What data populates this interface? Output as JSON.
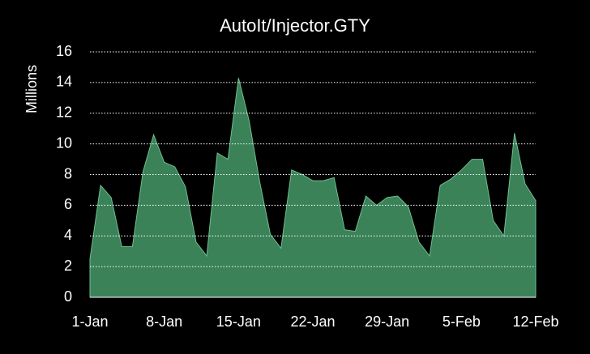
{
  "chart_data": {
    "type": "area",
    "title": "AutoIt/Injector.GTY",
    "y_label": "Millions",
    "categories": [
      "1-Jan",
      null,
      null,
      null,
      null,
      null,
      null,
      "8-Jan",
      null,
      null,
      null,
      null,
      null,
      null,
      "15-Jan",
      null,
      null,
      null,
      null,
      null,
      null,
      "22-Jan",
      null,
      null,
      null,
      null,
      null,
      null,
      "29-Jan",
      null,
      null,
      null,
      null,
      null,
      null,
      "5-Feb",
      null,
      null,
      null,
      null,
      null,
      null,
      "12-Feb"
    ],
    "values": [
      2.5,
      7.3,
      6.5,
      3.3,
      3.3,
      8.2,
      10.6,
      8.8,
      8.5,
      7.2,
      3.6,
      2.7,
      9.4,
      9.0,
      14.3,
      11.5,
      7.5,
      4.1,
      3.2,
      8.3,
      8.0,
      7.6,
      7.6,
      7.8,
      4.4,
      4.3,
      6.6,
      6.0,
      6.5,
      6.6,
      5.9,
      3.6,
      2.7,
      7.3,
      7.7,
      8.3,
      9.0,
      9.0,
      5.0,
      4.0,
      10.7,
      7.4,
      6.3
    ],
    "color": "#3b8259",
    "ylim": [
      0,
      16
    ],
    "yticks": [
      0,
      2,
      4,
      6,
      8,
      10,
      12,
      14,
      16
    ],
    "grid": true
  }
}
